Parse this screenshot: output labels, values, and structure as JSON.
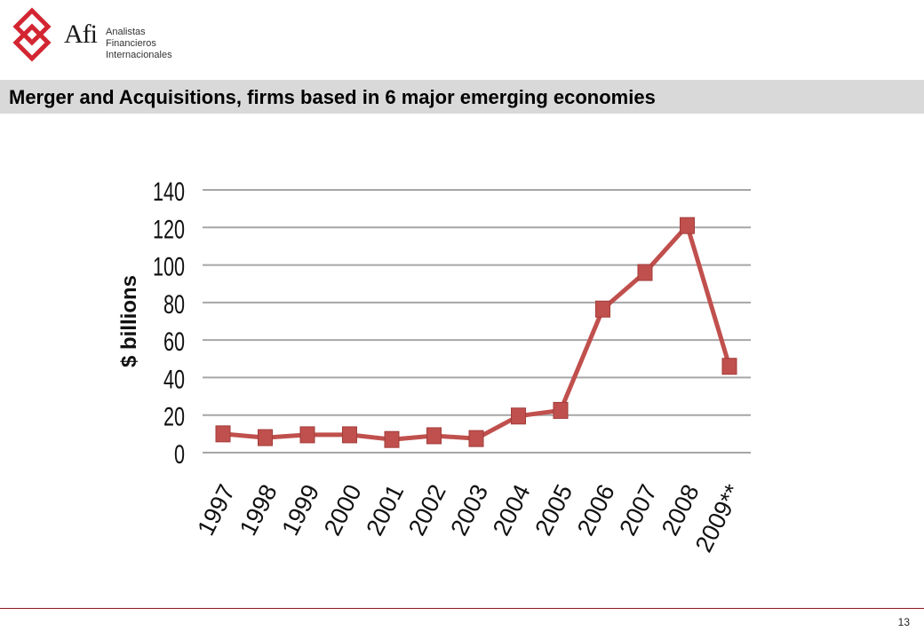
{
  "header": {
    "logo_name": "Afi",
    "logo_lines": [
      "Analistas",
      "Financieros",
      "Internacionales"
    ],
    "logo_color": "#d22630"
  },
  "slide": {
    "title": "Merger and Acquisitions, firms based in 6 major emerging economies",
    "page_number": "13"
  },
  "chart_data": {
    "type": "line",
    "categories": [
      "1997",
      "1998",
      "1999",
      "2000",
      "2001",
      "2002",
      "2003",
      "2004",
      "2005",
      "2006",
      "2007",
      "2008",
      "2009**"
    ],
    "series": [
      {
        "values": [
          10,
          8,
          9.5,
          9.5,
          7,
          9,
          7.5,
          19.5,
          22.5,
          76.5,
          96,
          121,
          46
        ]
      }
    ],
    "ylabel": "$ billions",
    "ylim": [
      0,
      140
    ],
    "yticks": [
      0,
      20,
      40,
      60,
      80,
      100,
      120,
      140
    ],
    "grid": true,
    "series_color": "#c0504d",
    "grid_color": "#a6a6a6"
  }
}
